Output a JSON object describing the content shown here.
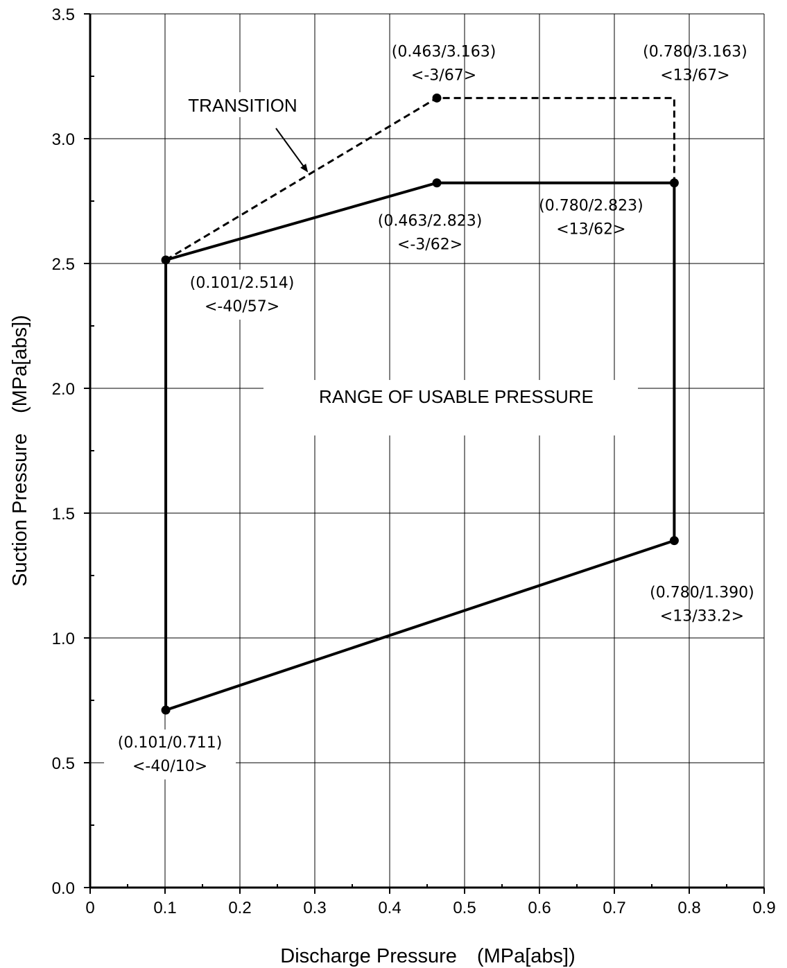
{
  "chart_data": {
    "type": "line",
    "xlabel": "Discharge Pressure　(MPa[abs])",
    "ylabel": "Suction Pressure　(MPa[abs])",
    "xlim": [
      0,
      0.9
    ],
    "ylim": [
      0.0,
      3.5
    ],
    "x_ticks": [
      "0",
      "0.1",
      "0.2",
      "0.3",
      "0.4",
      "0.5",
      "0.6",
      "0.7",
      "0.8",
      "0.9"
    ],
    "y_ticks": [
      "0.0",
      "0.5",
      "1.0",
      "1.5",
      "2.0",
      "2.5",
      "3.0",
      "3.5"
    ],
    "grid": true,
    "series": [
      {
        "style": "solid",
        "points": [
          {
            "x": 0.101,
            "y": 0.711
          },
          {
            "x": 0.101,
            "y": 2.514
          },
          {
            "x": 0.463,
            "y": 2.823
          },
          {
            "x": 0.78,
            "y": 2.823
          },
          {
            "x": 0.78,
            "y": 1.39
          },
          {
            "x": 0.101,
            "y": 0.711
          }
        ]
      },
      {
        "style": "dashed",
        "points": [
          {
            "x": 0.101,
            "y": 2.514
          },
          {
            "x": 0.463,
            "y": 3.163
          },
          {
            "x": 0.78,
            "y": 3.163
          },
          {
            "x": 0.78,
            "y": 2.823
          }
        ]
      }
    ],
    "markers": [
      {
        "x": 0.101,
        "y": 0.711
      },
      {
        "x": 0.101,
        "y": 2.514
      },
      {
        "x": 0.463,
        "y": 2.823
      },
      {
        "x": 0.78,
        "y": 2.823
      },
      {
        "x": 0.78,
        "y": 1.39
      },
      {
        "x": 0.463,
        "y": 3.163
      }
    ],
    "annotations": [
      {
        "point": [
          0.463,
          3.163
        ],
        "line1": "(0.463/3.163)",
        "line2": "<-3/67>"
      },
      {
        "point": [
          0.78,
          3.163
        ],
        "line1": "(0.780/3.163)",
        "line2": "<13/67>"
      },
      {
        "point": [
          0.463,
          2.823
        ],
        "line1": "(0.463/2.823)",
        "line2": "<-3/62>"
      },
      {
        "point": [
          0.78,
          2.823
        ],
        "line1": "(0.780/2.823)",
        "line2": "<13/62>"
      },
      {
        "point": [
          0.101,
          2.514
        ],
        "line1": "(0.101/2.514)",
        "line2": "<-40/57>"
      },
      {
        "point": [
          0.78,
          1.39
        ],
        "line1": "(0.780/1.390)",
        "line2": "<13/33.2>"
      },
      {
        "point": [
          0.101,
          0.711
        ],
        "line1": "(0.101/0.711)",
        "line2": "<-40/10>"
      }
    ],
    "region_label": "RANGE OF USABLE PRESSURE",
    "transition_label": "TRANSITION",
    "colors": {
      "line": "#000000",
      "background": "#ffffff"
    }
  }
}
